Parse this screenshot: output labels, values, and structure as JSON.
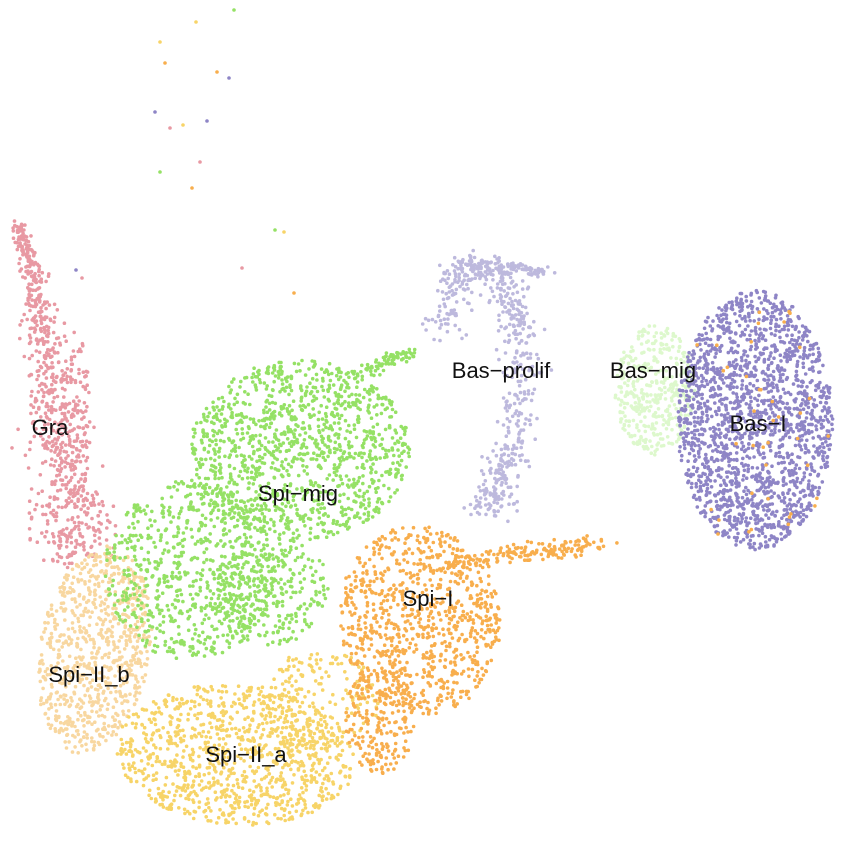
{
  "chart_data": {
    "type": "scatter",
    "title": "",
    "xlabel": "",
    "ylabel": "",
    "axes_visible": false,
    "grid": false,
    "legend": "none",
    "clusters": [
      {
        "name": "Gra",
        "color": "#E899A3"
      },
      {
        "name": "Spi-II_b",
        "color": "#F8D7A0"
      },
      {
        "name": "Spi-II_a",
        "color": "#F7D468"
      },
      {
        "name": "Spi-I",
        "color": "#F8AE4D"
      },
      {
        "name": "Spi-mig",
        "color": "#95E165"
      },
      {
        "name": "Bas-prolif",
        "color": "#BDB9DD"
      },
      {
        "name": "Bas-mig",
        "color": "#DDF8CC"
      },
      {
        "name": "Bas-I",
        "color": "#8E85C6"
      }
    ],
    "labels": [
      "Gra",
      "Spi−mig",
      "Bas−prolif",
      "Bas−mig",
      "Bas−I",
      "Spi−I",
      "Spi−II_b",
      "Spi−II_a"
    ]
  }
}
